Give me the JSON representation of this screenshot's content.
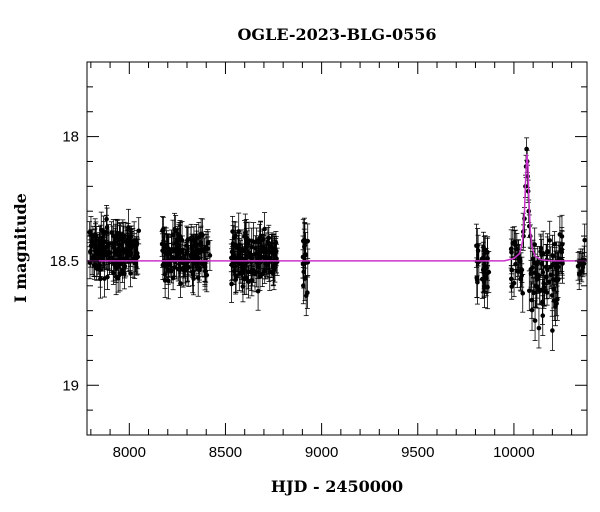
{
  "chart_data": {
    "type": "scatter",
    "title": "OGLE-2023-BLG-0556",
    "xlabel": "HJD - 2450000",
    "ylabel": "I magnitude",
    "xlim": [
      7780,
      10380
    ],
    "ylim": [
      19.2,
      17.7
    ],
    "y_inverted": true,
    "grid": false,
    "x_ticks": [
      8000,
      8500,
      9000,
      9500,
      10000
    ],
    "x_tick_labels": [
      "8000",
      "8500",
      "9000",
      "9500",
      "10000"
    ],
    "y_ticks": [
      18,
      18.5,
      19
    ],
    "y_tick_labels": [
      "18",
      "18.5",
      "19"
    ],
    "baseline_mag": 18.5,
    "colors": {
      "points": "#000000",
      "model": "#cc33cc",
      "axes": "#000000"
    },
    "model": {
      "x": [
        7780,
        9950,
        10000,
        10030,
        10045,
        10055,
        10062,
        10068,
        10073,
        10078,
        10085,
        10095,
        10110,
        10140,
        10200,
        10380
      ],
      "y": [
        18.5,
        18.5,
        18.49,
        18.47,
        18.42,
        18.3,
        18.15,
        18.07,
        18.12,
        18.25,
        18.38,
        18.45,
        18.48,
        18.495,
        18.5,
        18.5
      ]
    },
    "observations": {
      "seasons": [
        {
          "x_range": [
            7790,
            8050
          ],
          "count": 150,
          "mag_mean": 18.46,
          "mag_spread": 0.05,
          "err_mean": 0.06
        },
        {
          "x_range": [
            8170,
            8420
          ],
          "count": 140,
          "mag_mean": 18.48,
          "mag_spread": 0.05,
          "err_mean": 0.06
        },
        {
          "x_range": [
            8530,
            8770
          ],
          "count": 140,
          "mag_mean": 18.48,
          "mag_spread": 0.05,
          "err_mean": 0.06
        },
        {
          "x_range": [
            8900,
            8930
          ],
          "count": 15,
          "mag_mean": 18.53,
          "mag_spread": 0.07,
          "err_mean": 0.07
        },
        {
          "x_range": [
            9800,
            9870
          ],
          "count": 30,
          "mag_mean": 18.52,
          "mag_spread": 0.07,
          "err_mean": 0.07
        },
        {
          "x_range": [
            9985,
            10050
          ],
          "count": 25,
          "mag_mean": 18.5,
          "mag_spread": 0.06,
          "err_mean": 0.06
        },
        {
          "x_range": [
            10085,
            10260
          ],
          "count": 70,
          "mag_mean": 18.54,
          "mag_spread": 0.08,
          "err_mean": 0.07
        },
        {
          "x_range": [
            10330,
            10375
          ],
          "count": 12,
          "mag_mean": 18.5,
          "mag_spread": 0.04,
          "err_mean": 0.05
        }
      ],
      "peak_points": {
        "x": [
          10050,
          10055,
          10060,
          10063,
          10066,
          10069,
          10071,
          10074,
          10077,
          10080,
          10085
        ],
        "y": [
          18.4,
          18.33,
          18.2,
          18.12,
          18.05,
          18.1,
          18.16,
          18.22,
          18.3,
          18.36,
          18.4
        ]
      },
      "outliers": {
        "x": [
          8920,
          10080,
          10110,
          10130,
          10150,
          10200,
          10210
        ],
        "y": [
          18.64,
          18.62,
          18.74,
          18.77,
          18.72,
          18.78,
          18.66
        ]
      }
    }
  }
}
